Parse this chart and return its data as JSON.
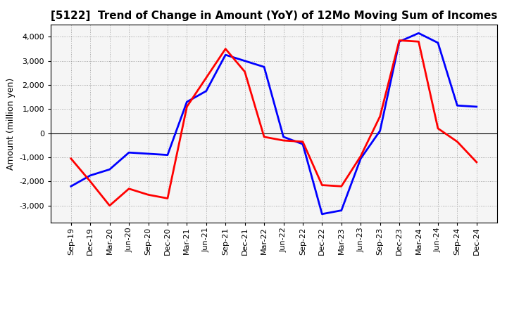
{
  "title": "[5122]  Trend of Change in Amount (YoY) of 12Mo Moving Sum of Incomes",
  "ylabel": "Amount (million yen)",
  "x_labels": [
    "Sep-19",
    "Dec-19",
    "Mar-20",
    "Jun-20",
    "Sep-20",
    "Dec-20",
    "Mar-21",
    "Jun-21",
    "Sep-21",
    "Dec-21",
    "Mar-22",
    "Jun-22",
    "Sep-22",
    "Dec-22",
    "Mar-23",
    "Jun-23",
    "Sep-23",
    "Dec-23",
    "Mar-24",
    "Jun-24",
    "Sep-24",
    "Dec-24"
  ],
  "ordinary_income": [
    -2200,
    -1750,
    -1500,
    -800,
    -850,
    -900,
    1300,
    1750,
    3250,
    3000,
    2750,
    -150,
    -450,
    -3350,
    -3200,
    -1050,
    100,
    3800,
    4150,
    3750,
    1150,
    1100
  ],
  "net_income": [
    -1050,
    -2000,
    -3000,
    -2300,
    -2550,
    -2700,
    1100,
    2300,
    3500,
    2550,
    -150,
    -300,
    -350,
    -2150,
    -2200,
    -950,
    700,
    3850,
    3800,
    200,
    -350,
    -1200
  ],
  "ordinary_color": "#0000FF",
  "net_color": "#FF0000",
  "ylim": [
    -3700,
    4500
  ],
  "yticks": [
    -3000,
    -2000,
    -1000,
    0,
    1000,
    2000,
    3000,
    4000
  ],
  "background_color": "#FFFFFF",
  "plot_bg_color": "#F5F5F5",
  "grid_color": "#999999",
  "title_fontsize": 11,
  "tick_fontsize": 8,
  "ylabel_fontsize": 9
}
